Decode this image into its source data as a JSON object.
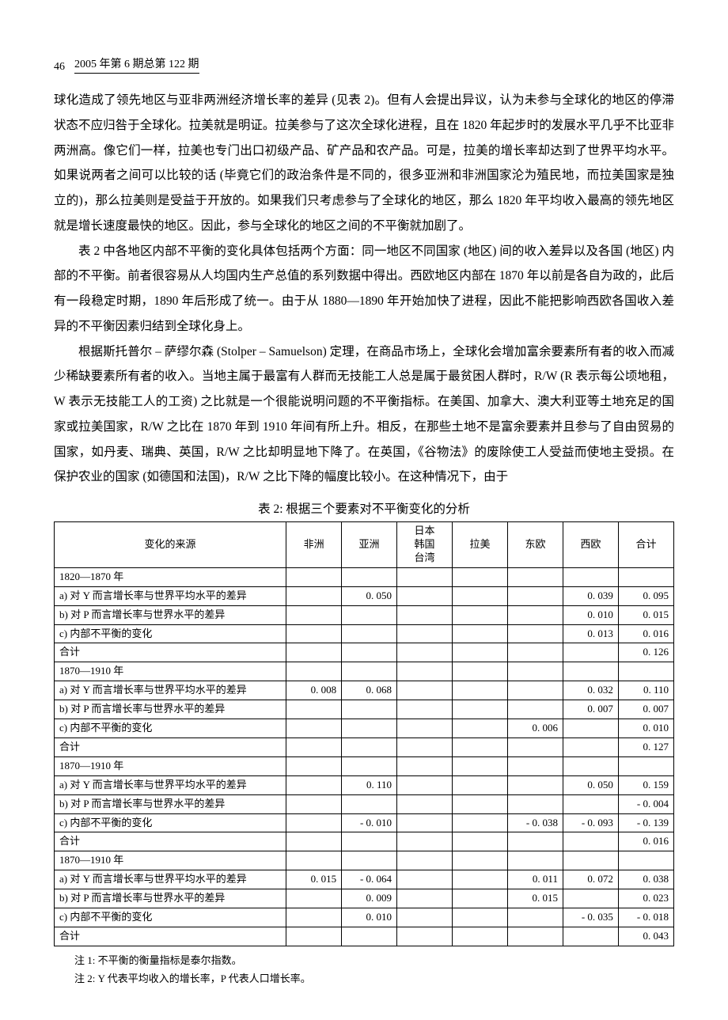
{
  "header": {
    "page_number": "46",
    "issue": "2005 年第 6 期总第 122 期"
  },
  "paragraphs": {
    "p1": "球化造成了领先地区与亚非两洲经济增长率的差异 (见表 2)。但有人会提出异议，认为未参与全球化的地区的停滞状态不应归咎于全球化。拉美就是明证。拉美参与了这次全球化进程，且在 1820 年起步时的发展水平几乎不比亚非两洲高。像它们一样，拉美也专门出口初级产品、矿产品和农产品。可是，拉美的增长率却达到了世界平均水平。如果说两者之间可以比较的话 (毕竟它们的政治条件是不同的，很多亚洲和非洲国家沦为殖民地，而拉美国家是独立的)，那么拉美则是受益于开放的。如果我们只考虑参与了全球化的地区，那么 1820 年平均收入最高的领先地区就是增长速度最快的地区。因此，参与全球化的地区之间的不平衡就加剧了。",
    "p2": "表 2 中各地区内部不平衡的变化具体包括两个方面：同一地区不同国家 (地区) 间的收入差异以及各国 (地区) 内部的不平衡。前者很容易从人均国内生产总值的系列数据中得出。西欧地区内部在 1870 年以前是各自为政的，此后有一段稳定时期，1890 年后形成了统一。由于从 1880—1890 年开始加快了进程，因此不能把影响西欧各国收入差异的不平衡因素归结到全球化身上。",
    "p3": "根据斯托普尔 – 萨缪尔森 (Stolper – Samuelson) 定理，在商品市场上，全球化会增加富余要素所有者的收入而减少稀缺要素所有者的收入。当地主属于最富有人群而无技能工人总是属于最贫困人群时，R/W (R 表示每公顷地租，W 表示无技能工人的工资) 之比就是一个很能说明问题的不平衡指标。在美国、加拿大、澳大利亚等土地充足的国家或拉美国家，R/W 之比在 1870 年到 1910 年间有所上升。相反，在那些土地不是富余要素并且参与了自由贸易的国家，如丹麦、瑞典、英国，R/W 之比却明显地下降了。在英国，《谷物法》的废除使工人受益而使地主受损。在保护农业的国家 (如德国和法国)，R/W 之比下降的幅度比较小。在这种情况下，由于"
  },
  "table": {
    "title": "表 2: 根据三个要素对不平衡变化的分析",
    "headers": {
      "source": "变化的来源",
      "africa": "非洲",
      "asia": "亚洲",
      "jkt": "日本\n韩国\n台湾",
      "latam": "拉美",
      "eeu": "东欧",
      "weu": "西欧",
      "total": "合计"
    },
    "row_labels": {
      "a": "a) 对 Y 而言增长率与世界平均水平的差异",
      "b": "b) 对 P 而言增长率与世界水平的差异",
      "c": "c) 内部不平衡的变化",
      "sum": "合计"
    },
    "sections": [
      {
        "period": "1820—1870 年",
        "rows": [
          {
            "label": "a",
            "africa": "",
            "asia": "0. 050",
            "jkt": "",
            "latam": "",
            "eeu": "",
            "weu": "0. 039",
            "total": "0. 095"
          },
          {
            "label": "b",
            "africa": "",
            "asia": "",
            "jkt": "",
            "latam": "",
            "eeu": "",
            "weu": "0. 010",
            "total": "0. 015"
          },
          {
            "label": "c",
            "africa": "",
            "asia": "",
            "jkt": "",
            "latam": "",
            "eeu": "",
            "weu": "0. 013",
            "total": "0. 016"
          },
          {
            "label": "sum",
            "africa": "",
            "asia": "",
            "jkt": "",
            "latam": "",
            "eeu": "",
            "weu": "",
            "total": "0. 126"
          }
        ]
      },
      {
        "period": "1870—1910 年",
        "rows": [
          {
            "label": "a",
            "africa": "0. 008",
            "asia": "0. 068",
            "jkt": "",
            "latam": "",
            "eeu": "",
            "weu": "0. 032",
            "total": "0. 110"
          },
          {
            "label": "b",
            "africa": "",
            "asia": "",
            "jkt": "",
            "latam": "",
            "eeu": "",
            "weu": "0. 007",
            "total": "0. 007"
          },
          {
            "label": "c",
            "africa": "",
            "asia": "",
            "jkt": "",
            "latam": "",
            "eeu": "0. 006",
            "weu": "",
            "total": "0. 010"
          },
          {
            "label": "sum",
            "africa": "",
            "asia": "",
            "jkt": "",
            "latam": "",
            "eeu": "",
            "weu": "",
            "total": "0. 127"
          }
        ]
      },
      {
        "period": "1870—1910 年",
        "rows": [
          {
            "label": "a",
            "africa": "",
            "asia": "0. 110",
            "jkt": "",
            "latam": "",
            "eeu": "",
            "weu": "0. 050",
            "total": "0. 159"
          },
          {
            "label": "b",
            "africa": "",
            "asia": "",
            "jkt": "",
            "latam": "",
            "eeu": "",
            "weu": "",
            "total": "- 0. 004"
          },
          {
            "label": "c",
            "africa": "",
            "asia": "- 0. 010",
            "jkt": "",
            "latam": "",
            "eeu": "- 0. 038",
            "weu": "- 0. 093",
            "total": "- 0. 139"
          },
          {
            "label": "sum",
            "africa": "",
            "asia": "",
            "jkt": "",
            "latam": "",
            "eeu": "",
            "weu": "",
            "total": "0. 016"
          }
        ]
      },
      {
        "period": "1870—1910 年",
        "rows": [
          {
            "label": "a",
            "africa": "0. 015",
            "asia": "- 0. 064",
            "jkt": "",
            "latam": "",
            "eeu": "0. 011",
            "weu": "0. 072",
            "total": "0. 038"
          },
          {
            "label": "b",
            "africa": "",
            "asia": "0. 009",
            "jkt": "",
            "latam": "",
            "eeu": "0. 015",
            "weu": "",
            "total": "0. 023"
          },
          {
            "label": "c",
            "africa": "",
            "asia": "0. 010",
            "jkt": "",
            "latam": "",
            "eeu": "",
            "weu": "- 0. 035",
            "total": "- 0. 018"
          },
          {
            "label": "sum",
            "africa": "",
            "asia": "",
            "jkt": "",
            "latam": "",
            "eeu": "",
            "weu": "",
            "total": "0. 043"
          }
        ]
      }
    ]
  },
  "notes": {
    "n1": "注 1: 不平衡的衡量指标是泰尔指数。",
    "n2": "注 2: Y 代表平均收入的增长率，P 代表人口增长率。"
  }
}
